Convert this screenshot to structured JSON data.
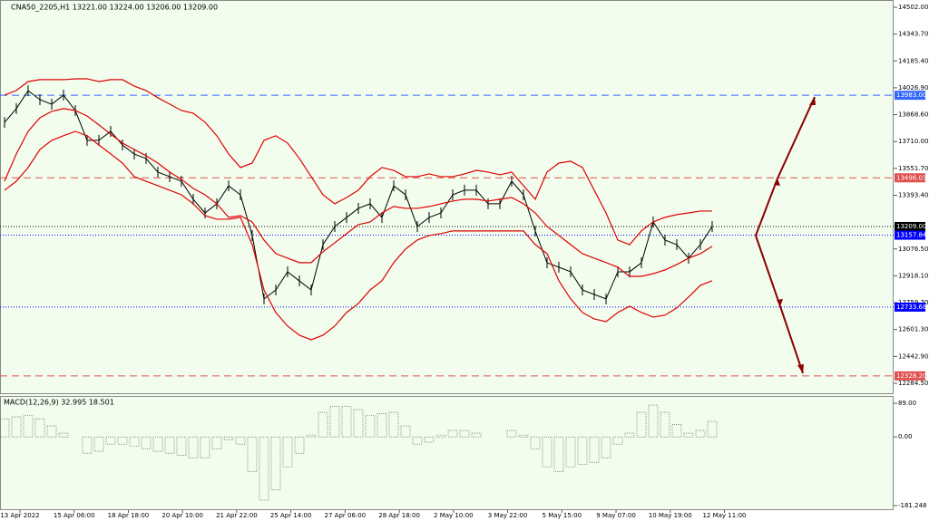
{
  "chart_data": {
    "type": "price",
    "title": "CNA50_2205,H1  13221.00 13224.00 13206.00 13209.00",
    "xlabels": [
      "13 Apr 2022",
      "15 Apr 06:00",
      "18 Apr 18:00",
      "20 Apr 10:00",
      "21 Apr 22:00",
      "25 Apr 14:00",
      "27 Apr 06:00",
      "28 Apr 18:00",
      "2 May 10:00",
      "3 May 22:00",
      "5 May 15:00",
      "9 May 07:00",
      "10 May 19:00",
      "12 May 11:00"
    ],
    "ylim": [
      12284.5,
      14502
    ],
    "yticks": [
      {
        "value": 14502,
        "label": "14502.00"
      },
      {
        "value": 14343.7,
        "label": "14343.70"
      },
      {
        "value": 14185.4,
        "label": "14185.40"
      },
      {
        "value": 14026.9,
        "label": "14026.90"
      },
      {
        "value": 13868.6,
        "label": "13868.60"
      },
      {
        "value": 13710,
        "label": "13710.00"
      },
      {
        "value": 13551.7,
        "label": "13551.70"
      },
      {
        "value": 13393.4,
        "label": "13393.40"
      },
      {
        "value": 13076.5,
        "label": "13076.50"
      },
      {
        "value": 12918.1,
        "label": "12918.10"
      },
      {
        "value": 12759.7,
        "label": "12759.70"
      },
      {
        "value": 12601.3,
        "label": "12601.30"
      },
      {
        "value": 12442.9,
        "label": "12442.90"
      },
      {
        "value": 12284.5,
        "label": "12284.50"
      }
    ],
    "series": [
      {
        "name": "Price",
        "color": "#000000",
        "values": [
          13823,
          13904,
          14010,
          13957,
          13930,
          13984,
          13893,
          13717,
          13717,
          13770,
          13690,
          13636,
          13610,
          13530,
          13503,
          13476,
          13369,
          13289,
          13343,
          13449,
          13396,
          13156,
          12782,
          12835,
          12942,
          12888,
          12835,
          13102,
          13209,
          13262,
          13316,
          13343,
          13262,
          13449,
          13396,
          13209,
          13262,
          13289,
          13396,
          13423,
          13423,
          13343,
          13343,
          13476,
          13396,
          13182,
          12995,
          12969,
          12942,
          12835,
          12808,
          12782,
          12942,
          12942,
          12995,
          13236,
          13129,
          13102,
          13022,
          13102,
          13209
        ]
      },
      {
        "name": "Upper band",
        "color": "#e00000",
        "values": [
          13984,
          14011,
          14064,
          14075,
          14075,
          14075,
          14080,
          14080,
          14064,
          14075,
          14075,
          14037,
          14011,
          13968,
          13931,
          13893,
          13877,
          13824,
          13744,
          13637,
          13557,
          13583,
          13717,
          13744,
          13701,
          13610,
          13503,
          13396,
          13343,
          13380,
          13423,
          13503,
          13557,
          13540,
          13503,
          13503,
          13519,
          13503,
          13503,
          13519,
          13540,
          13530,
          13514,
          13530,
          13450,
          13370,
          13530,
          13583,
          13594,
          13557,
          13423,
          13289,
          13129,
          13102,
          13183,
          13236,
          13263,
          13279,
          13289,
          13300,
          13300
        ]
      },
      {
        "name": "Middle band",
        "color": "#e00000",
        "values": [
          13476,
          13637,
          13770,
          13850,
          13888,
          13904,
          13893,
          13861,
          13808,
          13754,
          13701,
          13663,
          13626,
          13583,
          13530,
          13487,
          13434,
          13396,
          13343,
          13263,
          13273,
          13236,
          13129,
          13049,
          13022,
          12996,
          12996,
          13060,
          13113,
          13167,
          13220,
          13236,
          13289,
          13327,
          13316,
          13316,
          13327,
          13343,
          13359,
          13370,
          13370,
          13359,
          13370,
          13380,
          13343,
          13289,
          13209,
          13156,
          13102,
          13049,
          13022,
          12996,
          12969,
          12915,
          12915,
          12931,
          12953,
          12985,
          13022,
          13049,
          13092
        ]
      },
      {
        "name": "Lower band",
        "color": "#e00000",
        "values": [
          13423,
          13476,
          13557,
          13663,
          13717,
          13744,
          13770,
          13744,
          13690,
          13637,
          13583,
          13503,
          13476,
          13450,
          13423,
          13396,
          13343,
          13273,
          13252,
          13252,
          13263,
          13102,
          12835,
          12702,
          12622,
          12568,
          12541,
          12568,
          12622,
          12702,
          12755,
          12835,
          12889,
          12996,
          13076,
          13129,
          13156,
          13167,
          13183,
          13183,
          13183,
          13183,
          13183,
          13183,
          13183,
          13102,
          13049,
          12889,
          12782,
          12702,
          12664,
          12648,
          12702,
          12739,
          12702,
          12675,
          12686,
          12729,
          12793,
          12862,
          12889
        ]
      }
    ],
    "levels": [
      {
        "value": 13983,
        "label": "13983.00",
        "color": "#3366ff",
        "dash": "8,5"
      },
      {
        "value": 13496.03,
        "label": "13496.03",
        "color": "#e05050",
        "dash": "8,5"
      },
      {
        "value": 13209,
        "label": "13209.00",
        "color": "#000000",
        "dash": "1,2"
      },
      {
        "value": 13157.84,
        "label": "13157.84",
        "color": "#0000ff",
        "dash": "1,2"
      },
      {
        "value": 12733.68,
        "label": "12733.68",
        "color": "#0000ff",
        "dash": "1,2"
      },
      {
        "value": 12328.2,
        "label": "12328.20",
        "color": "#e05050",
        "dash": "8,5"
      }
    ],
    "macd": {
      "title": "MACD(12,26,9) 32.995 18.501",
      "ylim": [
        -181.248,
        89
      ],
      "yticks": [
        {
          "value": 89,
          "label": "89.00"
        },
        {
          "value": 0,
          "label": "0.00"
        },
        {
          "value": -181.248,
          "label": "-181.248"
        }
      ],
      "color": "#555555",
      "values": [
        48,
        53,
        57,
        48,
        29,
        10,
        0,
        -43,
        -38,
        -19,
        -19,
        -24,
        -31,
        -38,
        -43,
        -48,
        -55,
        -55,
        -31,
        -7,
        -19,
        -91,
        -167,
        -139,
        -79,
        -43,
        5,
        65,
        81,
        81,
        72,
        57,
        62,
        65,
        29,
        -19,
        -14,
        5,
        17,
        17,
        10,
        0,
        0,
        17,
        5,
        -31,
        -79,
        -91,
        -79,
        -72,
        -67,
        -55,
        -19,
        10,
        65,
        84,
        65,
        33,
        10,
        17,
        41
      ]
    }
  }
}
